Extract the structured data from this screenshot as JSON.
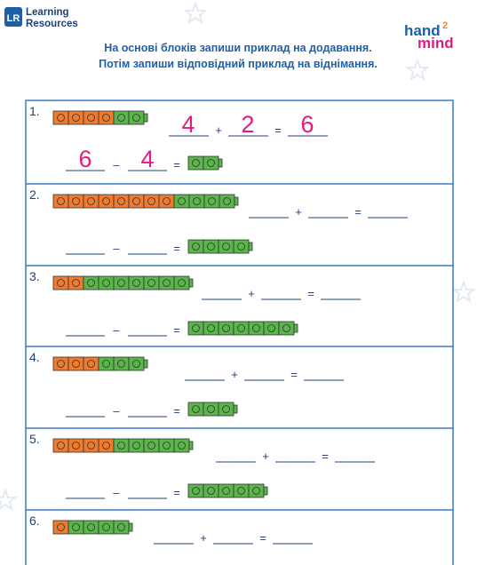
{
  "brand_left": [
    "Learning",
    "Resources"
  ],
  "brand_right": {
    "hand": "hand",
    "two": "2",
    "mind": "mind"
  },
  "instructions": [
    "На основі блоків запиши приклад на додавання.",
    "Потім запиши відповідний приклад на віднімання."
  ],
  "symbols": {
    "plus": "+",
    "minus": "–",
    "equals": "="
  },
  "rows": [
    {
      "label": "1.",
      "orange": 4,
      "green": 2,
      "answer_green": 2,
      "answers": [
        "4",
        "2",
        "6",
        "6",
        "4"
      ]
    },
    {
      "label": "2.",
      "orange": 8,
      "green": 4,
      "answer_green": 4
    },
    {
      "label": "3.",
      "orange": 2,
      "green": 7,
      "answer_green": 7
    },
    {
      "label": "4.",
      "orange": 3,
      "green": 3,
      "answer_green": 3
    },
    {
      "label": "5.",
      "orange": 4,
      "green": 5,
      "answer_green": 5
    },
    {
      "label": "6.",
      "orange": 1,
      "green": 4
    }
  ]
}
